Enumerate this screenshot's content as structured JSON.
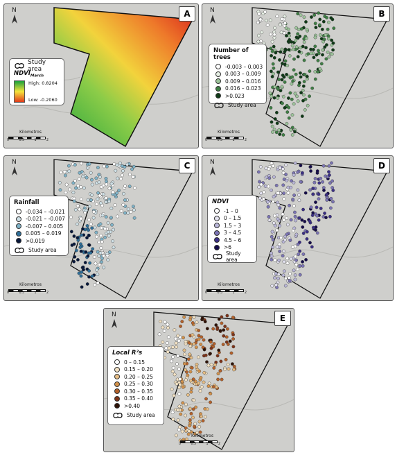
{
  "panels": {
    "a": {
      "letter": "A",
      "north": "N",
      "legend_title": "NDVI",
      "legend_sub": "March",
      "high": "High: 0.8204",
      "low": "Low: -0.2060",
      "study_area": "Study area",
      "scale_unit": "Kilometros",
      "scale_ticks": [
        "0",
        "0.5",
        "1",
        "2"
      ]
    },
    "b": {
      "letter": "B",
      "north": "N",
      "legend_title": "Number of trees",
      "classes": [
        "-0.003 – 0.003",
        "0.003 – 0.009",
        "0.009 – 0.016",
        "0.016 – 0.023",
        ">0.023"
      ],
      "study_area": "Study area",
      "scale_unit": "Kilometros",
      "scale_ticks": [
        "0",
        "0.5",
        "1",
        "2"
      ]
    },
    "c": {
      "letter": "C",
      "north": "N",
      "legend_title": "Rainfall",
      "classes": [
        "-0.034 – -0.021",
        "-0.021 – -0.007",
        "-0.007 – 0.005",
        "0.005 – 0.019",
        ">0.019"
      ],
      "study_area": "Study area",
      "scale_unit": "Kilometros",
      "scale_ticks": [
        "0",
        "0.5",
        "1",
        "2"
      ]
    },
    "d": {
      "letter": "D",
      "north": "N",
      "legend_title": "NDVI",
      "classes": [
        "-1 – 0",
        "0 – 1.5",
        "1.5 – 3",
        "3 – 4.5",
        "4.5 – 6",
        ">6"
      ],
      "study_area": "Study area",
      "scale_unit": "Kilometros",
      "scale_ticks": [
        "0",
        "0.5",
        "1",
        "2"
      ]
    },
    "e": {
      "letter": "E",
      "north": "N",
      "legend_title": "Local R²s",
      "classes": [
        "0 – 0.15",
        "0.15 – 0.20",
        "0.20 – 0.25",
        "0.25 – 0.30",
        "0.30 – 0.35",
        "0.35 – 0.40",
        ">0.40"
      ],
      "study_area": "Study area",
      "scale_unit": "Kilómetros",
      "scale_ticks": [
        "0",
        "0.5",
        "1",
        "2"
      ]
    }
  },
  "colors": {
    "terrain": "#cfcfcc",
    "boundary": "#111111",
    "b_classes": [
      "#ffffff",
      "#e6efe4",
      "#9cc39a",
      "#3f7f45",
      "#0f3a17"
    ],
    "c_classes": [
      "#ffffff",
      "#cfe0e6",
      "#7fb2c7",
      "#2f6f99",
      "#07173a"
    ],
    "d_classes": [
      "#ffffff",
      "#e3e2ef",
      "#b9b6d8",
      "#7b74b4",
      "#3b2f86",
      "#140b4a"
    ],
    "e_classes": [
      "#ffffff",
      "#f3e2c4",
      "#e6bd84",
      "#d4934c",
      "#b4612a",
      "#7d3318",
      "#2e1206"
    ],
    "ndvi_gradient": [
      "#1aa13a",
      "#f5e43c",
      "#e23a1a"
    ]
  }
}
